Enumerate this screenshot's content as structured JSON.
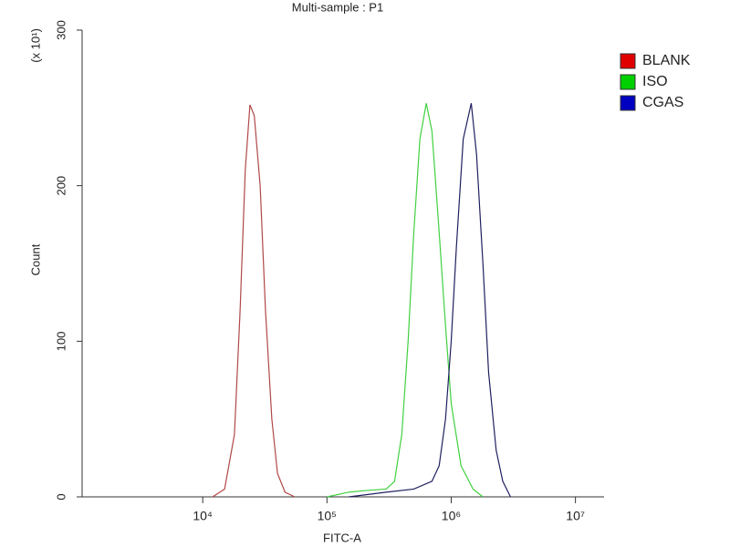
{
  "chart_data": {
    "type": "line",
    "title": "Multi-sample : P1",
    "x_label": "FITC-A",
    "y_label": "Count",
    "y_multiplier": "(x 10¹)",
    "x_scale": "log",
    "xlim": [
      1070,
      17000000
    ],
    "xticks": [
      {
        "value": 10000,
        "label": "10⁴"
      },
      {
        "value": 100000,
        "label": "10⁵"
      },
      {
        "value": 1000000,
        "label": "10⁶"
      },
      {
        "value": 10000000,
        "label": "10⁷"
      }
    ],
    "ylim": [
      0,
      300
    ],
    "yticks": [
      0,
      100,
      200,
      300
    ],
    "legend": "right",
    "series": [
      {
        "name": "BLANK",
        "color": "#b04848",
        "legend_color": "#e00000",
        "x": [
          12000,
          15000,
          18000,
          20000,
          22000,
          24000,
          26000,
          29000,
          32000,
          36000,
          40000,
          46000,
          55000
        ],
        "values": [
          0,
          5,
          40,
          120,
          210,
          252,
          245,
          200,
          120,
          50,
          15,
          3,
          0
        ]
      },
      {
        "name": "ISO",
        "color": "#40d040",
        "legend_color": "#00d000",
        "x": [
          100000,
          150000,
          200000,
          300000,
          350000,
          400000,
          450000,
          500000,
          560000,
          630000,
          700000,
          800000,
          900000,
          1000000,
          1200000,
          1500000,
          1800000
        ],
        "values": [
          0,
          3,
          4,
          5,
          10,
          40,
          100,
          170,
          230,
          253,
          235,
          170,
          110,
          60,
          20,
          5,
          0
        ]
      },
      {
        "name": "CGAS",
        "color": "#202060",
        "legend_color": "#0000c0",
        "x": [
          150000,
          300000,
          500000,
          700000,
          800000,
          900000,
          1000000,
          1100000,
          1250000,
          1450000,
          1600000,
          1800000,
          2000000,
          2300000,
          2600000,
          3000000
        ],
        "values": [
          0,
          3,
          5,
          10,
          20,
          50,
          100,
          160,
          230,
          253,
          220,
          150,
          80,
          30,
          10,
          0
        ]
      }
    ]
  }
}
